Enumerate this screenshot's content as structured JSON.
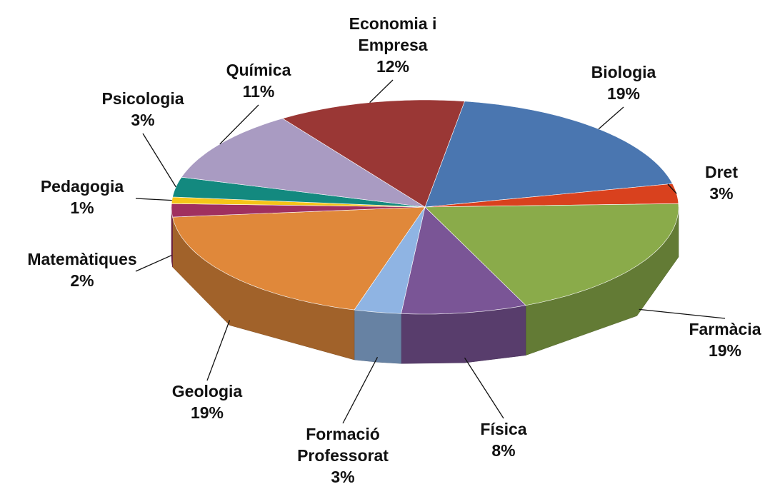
{
  "chart_data": {
    "type": "pie",
    "3d": true,
    "categories": [
      "Biologia",
      "Dret",
      "Farmàcia",
      "Física",
      "Formació Professorat",
      "Geologia",
      "Matemàtiques",
      "Pedagogia",
      "Psicologia",
      "Química",
      "Economia i Empresa"
    ],
    "values": [
      19,
      3,
      19,
      8,
      3,
      19,
      2,
      1,
      3,
      11,
      12
    ],
    "value_labels": [
      "19%",
      "3%",
      "19%",
      "8%",
      "3%",
      "19%",
      "2%",
      "1%",
      "3%",
      "11%",
      "12%"
    ],
    "colors": [
      "#4a76b0",
      "#d9411e",
      "#8aab4a",
      "#7a5596",
      "#8fb4e3",
      "#e0883a",
      "#a0305f",
      "#f5c518",
      "#13897f",
      "#a99bc2",
      "#9a3735"
    ]
  }
}
